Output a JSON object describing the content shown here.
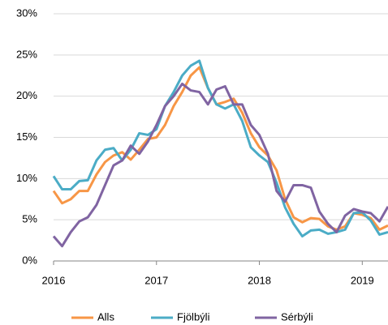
{
  "chart_data": {
    "type": "line",
    "x": [
      2016,
      2016.083,
      2016.167,
      2016.25,
      2016.333,
      2016.417,
      2016.5,
      2016.583,
      2016.667,
      2016.75,
      2016.833,
      2016.917,
      2017,
      2017.083,
      2017.167,
      2017.25,
      2017.333,
      2017.417,
      2017.5,
      2017.583,
      2017.667,
      2017.75,
      2017.833,
      2017.917,
      2018,
      2018.083,
      2018.167,
      2018.25,
      2018.333,
      2018.417,
      2018.5,
      2018.583,
      2018.667,
      2018.75,
      2018.833,
      2018.917,
      2019,
      2019.083,
      2019.167,
      2019.25
    ],
    "series": [
      {
        "name": "Alls",
        "color": "#f79646",
        "values": [
          8.5,
          7.0,
          7.5,
          8.5,
          8.5,
          10.5,
          12.0,
          12.8,
          13.2,
          12.3,
          13.5,
          14.8,
          15.0,
          16.5,
          18.8,
          20.5,
          22.5,
          23.5,
          21.0,
          19.0,
          19.3,
          19.7,
          18.0,
          15.5,
          13.8,
          12.8,
          11.0,
          7.5,
          5.3,
          4.7,
          5.2,
          5.1,
          4.2,
          3.8,
          4.2,
          5.8,
          5.6,
          5.2,
          3.8,
          4.3
        ]
      },
      {
        "name": "Fjölbýli",
        "color": "#4bacc6",
        "values": [
          10.3,
          8.7,
          8.7,
          9.7,
          9.8,
          12.2,
          13.5,
          13.7,
          12.2,
          13.5,
          15.5,
          15.3,
          16.0,
          18.8,
          20.5,
          22.5,
          23.7,
          24.3,
          21.0,
          19.0,
          18.5,
          19.0,
          17.0,
          13.8,
          12.8,
          12.0,
          9.5,
          6.5,
          4.5,
          3.0,
          3.7,
          3.8,
          3.3,
          3.5,
          3.8,
          5.8,
          5.9,
          4.9,
          3.2,
          3.5
        ]
      },
      {
        "name": "Sérbýli",
        "color": "#8064a2",
        "values": [
          3.0,
          1.8,
          3.5,
          4.8,
          5.3,
          6.8,
          9.2,
          11.6,
          12.2,
          14.0,
          13.0,
          14.5,
          16.5,
          18.8,
          20.0,
          21.5,
          20.7,
          20.5,
          19.0,
          20.8,
          21.2,
          19.0,
          19.0,
          16.5,
          15.3,
          13.0,
          8.5,
          7.2,
          9.2,
          9.2,
          8.9,
          6.0,
          4.5,
          3.5,
          5.5,
          6.3,
          6.0,
          5.8,
          4.8,
          6.6
        ]
      }
    ],
    "xlim": [
      2016,
      2019.25
    ],
    "xticks": [
      2016,
      2017,
      2018,
      2019
    ],
    "ylim": [
      0,
      30
    ],
    "yticks": [
      {
        "value": 0,
        "label": "0%"
      },
      {
        "value": 5,
        "label": "5%"
      },
      {
        "value": 10,
        "label": "10%"
      },
      {
        "value": 15,
        "label": "15%"
      },
      {
        "value": 20,
        "label": "20%"
      },
      {
        "value": 25,
        "label": "25%"
      },
      {
        "value": 30,
        "label": "30%"
      }
    ],
    "grid": true,
    "legend": "bottom"
  }
}
